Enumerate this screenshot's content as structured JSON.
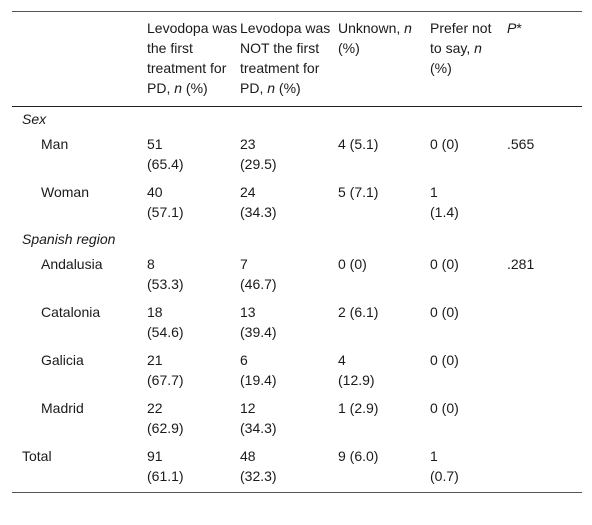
{
  "headers": [
    {
      "pre": "",
      "it": "",
      "post": ""
    },
    {
      "pre": "Levodopa was the first treatment for PD, ",
      "it": "n",
      "post": " (%)"
    },
    {
      "pre": "Levodopa was NOT the first treatment for PD, ",
      "it": "n",
      "post": " (%)"
    },
    {
      "pre": "Unknown, ",
      "it": "n",
      "post": " (%)"
    },
    {
      "pre": "Prefer not to say, ",
      "it": "n",
      "post": " (%)"
    },
    {
      "pre": "",
      "it": "P",
      "post": "*"
    }
  ],
  "sections": [
    {
      "title": "Sex",
      "rows": [
        {
          "label": "Man",
          "cells": [
            [
              "51",
              "(65.4)"
            ],
            [
              "23",
              "(29.5)"
            ],
            [
              "4 (5.1)",
              ""
            ],
            [
              "0 (0)",
              ""
            ],
            [
              ".565",
              ""
            ]
          ]
        },
        {
          "label": "Woman",
          "cells": [
            [
              "40",
              "(57.1)"
            ],
            [
              "24",
              "(34.3)"
            ],
            [
              "5 (7.1)",
              ""
            ],
            [
              "1",
              "(1.4)"
            ],
            [
              "",
              ""
            ]
          ]
        }
      ]
    },
    {
      "title": "Spanish region",
      "rows": [
        {
          "label": "Andalusia",
          "cells": [
            [
              "8",
              "(53.3)"
            ],
            [
              "7",
              "(46.7)"
            ],
            [
              "0 (0)",
              ""
            ],
            [
              "0 (0)",
              ""
            ],
            [
              ".281",
              ""
            ]
          ]
        },
        {
          "label": "Catalonia",
          "cells": [
            [
              "18",
              "(54.6)"
            ],
            [
              "13",
              "(39.4)"
            ],
            [
              "2 (6.1)",
              ""
            ],
            [
              "0 (0)",
              ""
            ],
            [
              "",
              ""
            ]
          ]
        },
        {
          "label": "Galicia",
          "cells": [
            [
              "21",
              "(67.7)"
            ],
            [
              "6",
              "(19.4)"
            ],
            [
              "4",
              "(12.9)"
            ],
            [
              "0 (0)",
              ""
            ],
            [
              "",
              ""
            ]
          ]
        },
        {
          "label": "Madrid",
          "cells": [
            [
              "22",
              "(62.9)"
            ],
            [
              "12",
              "(34.3)"
            ],
            [
              "1 (2.9)",
              ""
            ],
            [
              "0 (0)",
              ""
            ],
            [
              "",
              ""
            ]
          ]
        }
      ]
    }
  ],
  "total": {
    "label": "Total",
    "cells": [
      [
        "91",
        "(61.1)"
      ],
      [
        "48",
        "(32.3)"
      ],
      [
        "9 (6.0)",
        ""
      ],
      [
        "1",
        "(0.7)"
      ],
      [
        "",
        ""
      ]
    ]
  }
}
